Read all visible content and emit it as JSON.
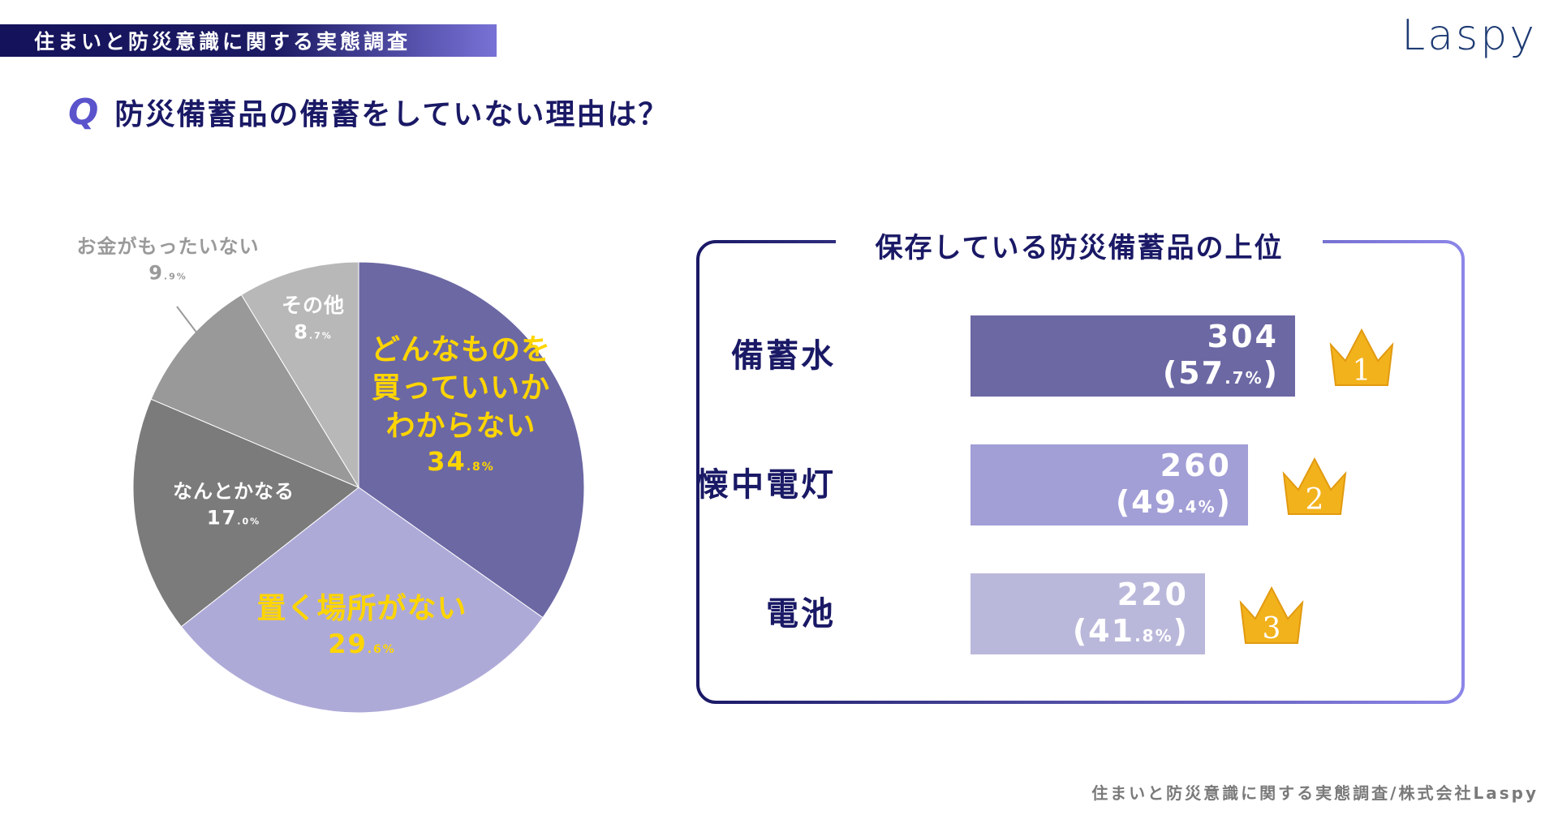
{
  "header": {
    "banner": "住まいと防災意識に関する実態調査",
    "logo": "Laspy"
  },
  "question": {
    "mark": "Q",
    "text": "防災備蓄品の備蓄をしていない理由は？"
  },
  "chart_data": [
    {
      "type": "pie",
      "slices": [
        {
          "label": [
            "どんなものを",
            "買っていいか",
            "わからない"
          ],
          "int": "34",
          "dec": ".8%",
          "value": 34.8,
          "color": "#6c68a4",
          "text_color": "#ffd500"
        },
        {
          "label": [
            "置く場所がない"
          ],
          "int": "29",
          "dec": ".6%",
          "value": 29.6,
          "color": "#aeaad8",
          "text_color": "#ffd500"
        },
        {
          "label": [
            "なんとかなる"
          ],
          "int": "17",
          "dec": ".0%",
          "value": 17.0,
          "color": "#7b7b7b",
          "text_color": "#ffffff"
        },
        {
          "label": [
            "お金がもったいない"
          ],
          "int": "9",
          "dec": ".9%",
          "value": 9.9,
          "color": "#999999",
          "text_color": "#9a9a9a"
        },
        {
          "label": [
            "その他"
          ],
          "int": "8",
          "dec": ".7%",
          "value": 8.7,
          "color": "#b8b8b8",
          "text_color": "#ffffff"
        }
      ]
    },
    {
      "type": "bar",
      "title": "保存している防災備蓄品の上位",
      "categories": [
        "備蓄水",
        "懐中電灯",
        "電池"
      ],
      "values": [
        304,
        260,
        220
      ],
      "percents": [
        {
          "open": "(",
          "int": "57",
          "dec": ".7%",
          "close": ")"
        },
        {
          "open": "(",
          "int": "49",
          "dec": ".4%",
          "close": ")"
        },
        {
          "open": "(",
          "int": "41",
          "dec": ".8%",
          "close": ")"
        }
      ],
      "ranks": [
        "1",
        "2",
        "3"
      ],
      "colors": [
        "#6c68a4",
        "#a29ed6",
        "#bab8da"
      ]
    }
  ],
  "footer": "住まいと防災意識に関する実態調査/株式会社Laspy",
  "colors": {
    "navy": "#1a1966",
    "accent": "#5a53cc",
    "yellow": "#ffd500",
    "gold": "#f2b21c"
  }
}
